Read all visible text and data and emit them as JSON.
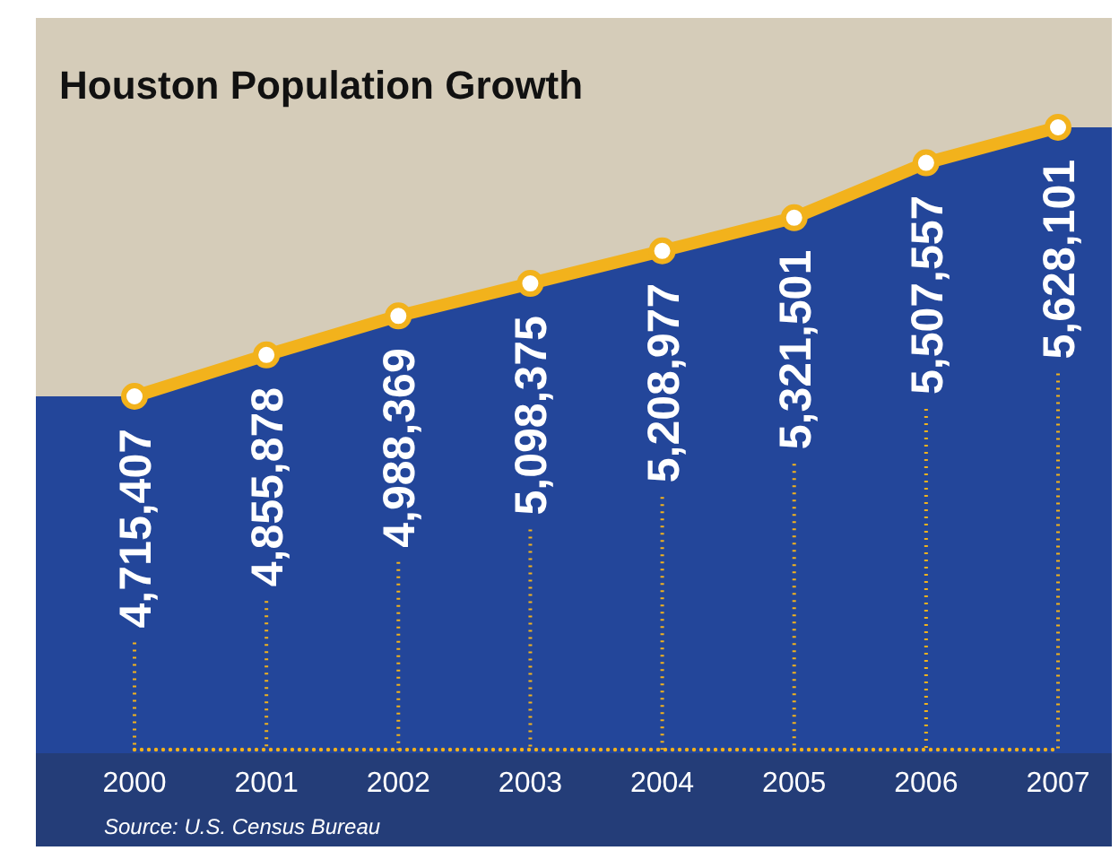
{
  "chart_data": {
    "type": "area",
    "title": "Houston Population Growth",
    "categories": [
      "2000",
      "2001",
      "2002",
      "2003",
      "2004",
      "2005",
      "2006",
      "2007"
    ],
    "series": [
      {
        "color": "#f2b21c",
        "values": [
          4715407,
          4855878,
          4988369,
          5098375,
          5208977,
          5321501,
          5507557,
          5628101
        ],
        "value_labels": [
          "4,715,407",
          "4,855,878",
          "4,988,369",
          "5,098,375",
          "5,208,977",
          "5,321,501",
          "5,507,557",
          "5,628,101"
        ]
      }
    ],
    "tick_labels": "x",
    "marker": "circle",
    "line_style": "solid",
    "annotations": [
      "Source: U.S. Census Bureau"
    ]
  }
}
